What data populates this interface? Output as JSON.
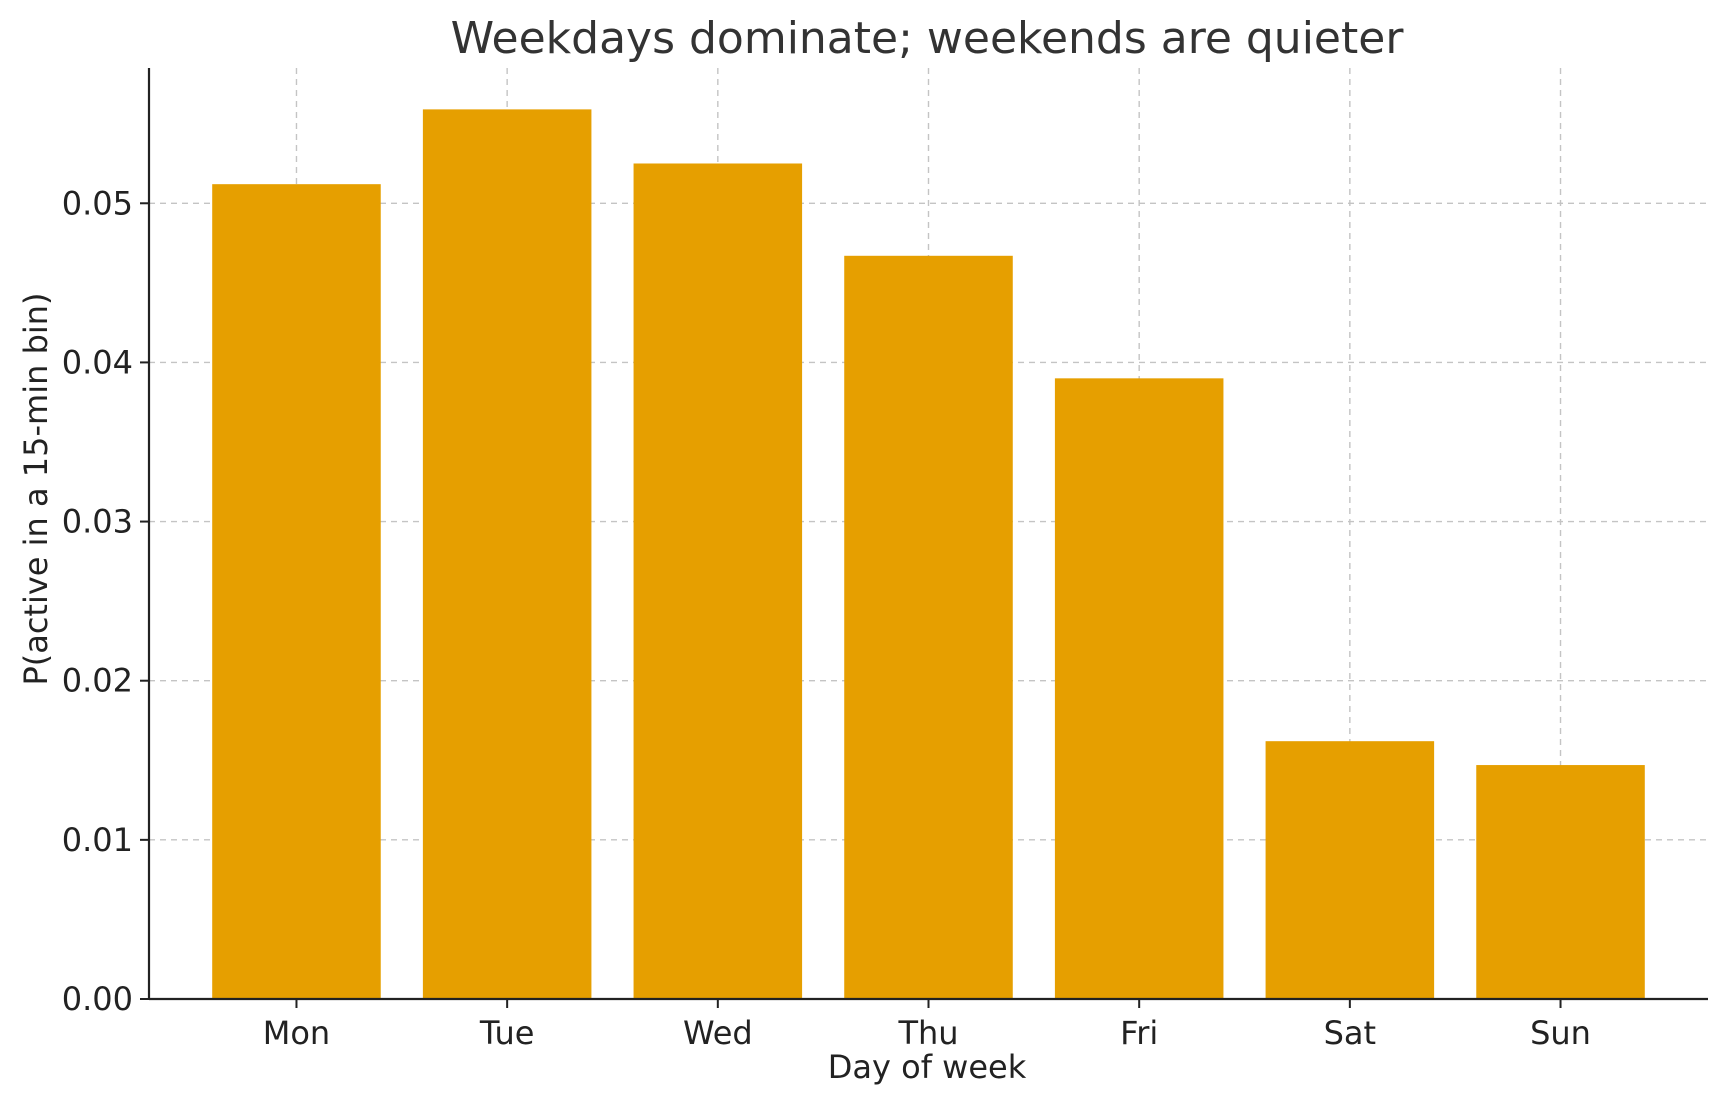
{
  "chart_data": {
    "type": "bar",
    "title": "Weekdays dominate; weekends are quieter",
    "xlabel": "Day of week",
    "ylabel": "P(active in a 15-min bin)",
    "categories": [
      "Mon",
      "Tue",
      "Wed",
      "Thu",
      "Fri",
      "Sat",
      "Sun"
    ],
    "values": [
      0.0512,
      0.0559,
      0.0525,
      0.0467,
      0.039,
      0.0162,
      0.0147
    ],
    "ylim": [
      0,
      0.0585
    ],
    "yticks": [
      0.0,
      0.01,
      0.02,
      0.03,
      0.04,
      0.05
    ],
    "ytick_labels": [
      "0.00",
      "0.01",
      "0.02",
      "0.03",
      "0.04",
      "0.05"
    ],
    "grid": true,
    "bar_color": "#E69F00"
  }
}
